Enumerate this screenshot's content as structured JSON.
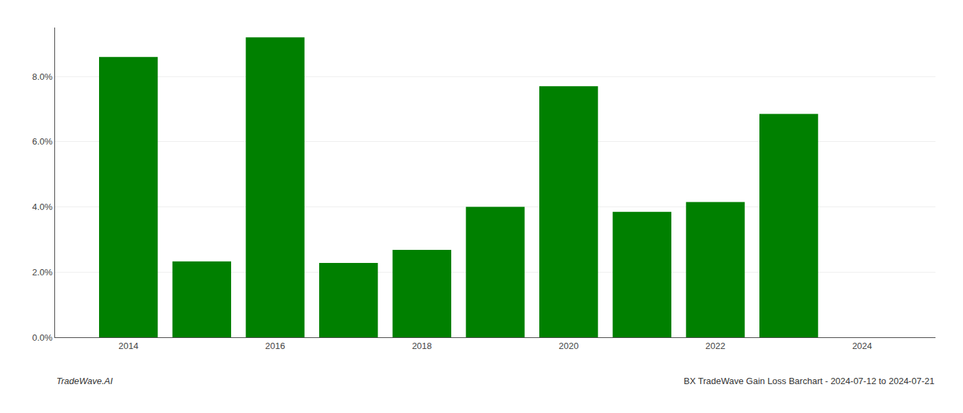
{
  "chart_data": {
    "type": "bar",
    "x": [
      2014,
      2015,
      2016,
      2017,
      2018,
      2019,
      2020,
      2021,
      2022,
      2023
    ],
    "values": [
      0.086,
      0.0233,
      0.092,
      0.0228,
      0.0268,
      0.04,
      0.077,
      0.0385,
      0.0415,
      0.0685
    ],
    "color": "#008000",
    "xlim": [
      2013,
      2025
    ],
    "xticks": [
      2014,
      2016,
      2018,
      2020,
      2022,
      2024
    ],
    "ylim": [
      0.0,
      0.095
    ],
    "yticks": [
      {
        "value": 0.0,
        "label": "0.0%"
      },
      {
        "value": 0.02,
        "label": "2.0%"
      },
      {
        "value": 0.04,
        "label": "4.0%"
      },
      {
        "value": 0.06,
        "label": "6.0%"
      },
      {
        "value": 0.08,
        "label": "8.0%"
      }
    ],
    "grid": true,
    "annotations": [
      "TradeWave.AI",
      "BX TradeWave Gain Loss Barchart - 2024-07-12 to 2024-07-21"
    ]
  }
}
